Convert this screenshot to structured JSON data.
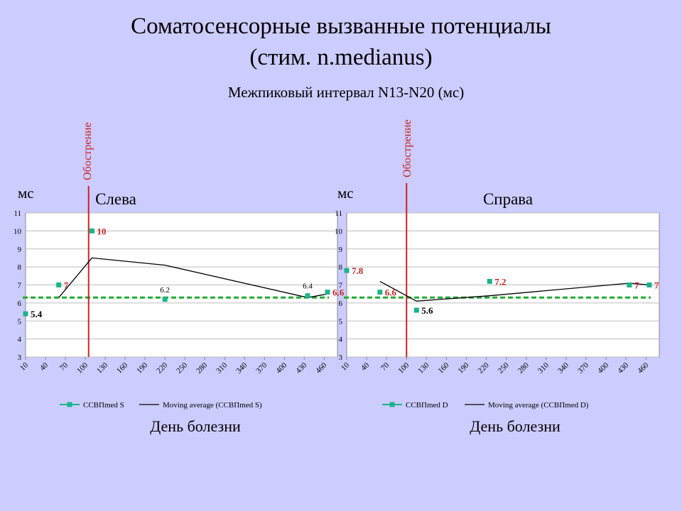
{
  "slide": {
    "title_line1": "Соматосенсорные вызванные потенциалы",
    "title_line2": "(стим. n.medianus)",
    "subtitle": "Межпиковый интервал N13-N20 (мс)"
  },
  "colors": {
    "background": "#ccccff",
    "plot_background": "#ffffff",
    "marker": "#1db38a",
    "moving_average": "#000000",
    "threshold": "#22aa33",
    "exacerbation_line": "#cc2222",
    "highlight_label": "#cc2222"
  },
  "chart_data": [
    {
      "type": "line",
      "side_label": "Слева",
      "ylabel": "мс",
      "xlabel": "День болезни",
      "ylim": [
        3,
        11
      ],
      "yticks": [
        3,
        4,
        5,
        6,
        7,
        8,
        9,
        10,
        11
      ],
      "xlim": [
        10,
        480
      ],
      "xticks": [
        10,
        40,
        70,
        100,
        130,
        160,
        190,
        220,
        250,
        280,
        310,
        340,
        370,
        400,
        430,
        460
      ],
      "grid": "horizontal",
      "legend_position": "bottom",
      "threshold": 6.3,
      "exacerbation_day": 105,
      "exacerbation_label": "Обострение",
      "series": [
        {
          "name": "ССВПmed S",
          "kind": "markers",
          "points": [
            {
              "x": 10,
              "y": 5.4,
              "label": "5.4",
              "style": "bold-black"
            },
            {
              "x": 60,
              "y": 7.0,
              "label": "7",
              "style": "bold-red"
            },
            {
              "x": 110,
              "y": 10.0,
              "label": "10",
              "style": "bold-red"
            },
            {
              "x": 220,
              "y": 6.2,
              "label": "6.2",
              "style": "small-above"
            },
            {
              "x": 435,
              "y": 6.4,
              "label": "6.4",
              "style": "small-above"
            },
            {
              "x": 465,
              "y": 6.6,
              "label": "6.6",
              "style": "bold-red"
            }
          ]
        },
        {
          "name": "Moving average (ССВПmed S)",
          "kind": "line",
          "points": [
            {
              "x": 60,
              "y": 6.3
            },
            {
              "x": 110,
              "y": 8.5
            },
            {
              "x": 220,
              "y": 8.1
            },
            {
              "x": 435,
              "y": 6.3
            },
            {
              "x": 465,
              "y": 6.5
            }
          ]
        }
      ]
    },
    {
      "type": "line",
      "side_label": "Справа",
      "ylabel": "мс",
      "xlabel": "День болезни",
      "ylim": [
        3,
        11
      ],
      "yticks": [
        3,
        4,
        5,
        6,
        7,
        8,
        9,
        10,
        11
      ],
      "xlim": [
        10,
        480
      ],
      "xticks": [
        10,
        40,
        70,
        100,
        130,
        160,
        190,
        220,
        250,
        280,
        310,
        340,
        370,
        400,
        430,
        460
      ],
      "grid": "horizontal",
      "legend_position": "bottom",
      "threshold": 6.3,
      "exacerbation_day": 100,
      "exacerbation_label": "Обострение",
      "series": [
        {
          "name": "ССВПmed D",
          "kind": "markers",
          "points": [
            {
              "x": 10,
              "y": 7.8,
              "label": "7.8",
              "style": "bold-red"
            },
            {
              "x": 60,
              "y": 6.6,
              "label": "6.6",
              "style": "bold-red"
            },
            {
              "x": 115,
              "y": 5.6,
              "label": "5.6",
              "style": "bold-black"
            },
            {
              "x": 225,
              "y": 7.2,
              "label": "7.2",
              "style": "bold-red"
            },
            {
              "x": 435,
              "y": 7.0,
              "label": "7",
              "style": "bold-red"
            },
            {
              "x": 465,
              "y": 7.0,
              "label": "7",
              "style": "bold-red"
            }
          ]
        },
        {
          "name": "Moving average (ССВПmed D)",
          "kind": "line",
          "points": [
            {
              "x": 60,
              "y": 7.2
            },
            {
              "x": 115,
              "y": 6.1
            },
            {
              "x": 225,
              "y": 6.4
            },
            {
              "x": 435,
              "y": 7.1
            },
            {
              "x": 465,
              "y": 7.0
            }
          ]
        }
      ]
    }
  ]
}
